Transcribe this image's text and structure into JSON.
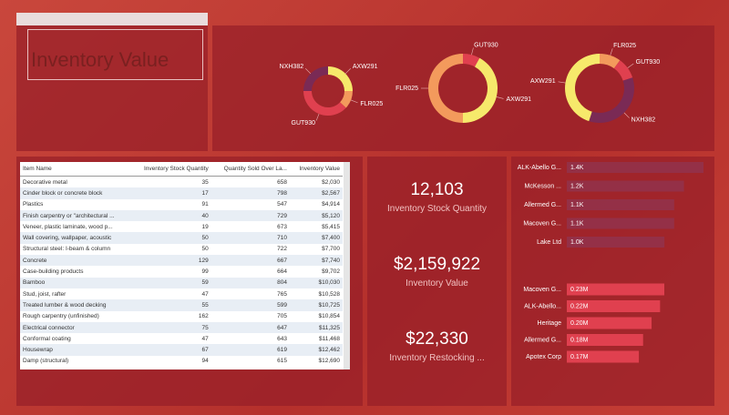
{
  "header": {
    "title": "Inventory Value"
  },
  "donuts": [
    {
      "labels": [
        "AXW291",
        "FLR025",
        "GUT930",
        "NXH382"
      ],
      "values": [
        25,
        12,
        38,
        25
      ],
      "colors": [
        "#f6e96b",
        "#f39a5c",
        "#e0404f",
        "#7a2a55"
      ]
    },
    {
      "labels": [
        "GUT930",
        "AXW291",
        "FLR025"
      ],
      "values": [
        8,
        42,
        50
      ],
      "colors": [
        "#e0404f",
        "#f6e96b",
        "#f39a5c"
      ]
    },
    {
      "labels": [
        "FLR025",
        "GUT930",
        "NXH382",
        "AXW291"
      ],
      "values": [
        10,
        10,
        35,
        45
      ],
      "colors": [
        "#f39a5c",
        "#e0404f",
        "#7a2a55",
        "#f6e96b"
      ]
    }
  ],
  "table": {
    "columns": [
      "Item Name",
      "Inventory Stock Quantity",
      "Quantity Sold Over La...",
      "Inventory Value"
    ],
    "rows": [
      [
        "Decorative metal",
        35,
        658,
        "$2,030"
      ],
      [
        "Cinder block or concrete block",
        17,
        798,
        "$2,567"
      ],
      [
        "Plastics",
        91,
        547,
        "$4,914"
      ],
      [
        "Finish carpentry or \"architectural ...",
        40,
        729,
        "$5,120"
      ],
      [
        "Veneer, plastic laminate, wood p...",
        19,
        673,
        "$5,415"
      ],
      [
        "Wall covering, wallpaper, acoustic",
        50,
        710,
        "$7,400"
      ],
      [
        "Structural steel: I-beam & column",
        50,
        722,
        "$7,700"
      ],
      [
        "Concrete",
        129,
        667,
        "$7,740"
      ],
      [
        "Case-building products",
        99,
        664,
        "$9,702"
      ],
      [
        "Bamboo",
        59,
        804,
        "$10,030"
      ],
      [
        "Stud, joist, rafter",
        47,
        765,
        "$10,528"
      ],
      [
        "Treated lumber & wood decking",
        55,
        599,
        "$10,725"
      ],
      [
        "Rough carpentry (unfinished)",
        162,
        705,
        "$10,854"
      ],
      [
        "Electrical connector",
        75,
        647,
        "$11,325"
      ],
      [
        "Conformal coating",
        47,
        643,
        "$11,468"
      ],
      [
        "Housewrap",
        67,
        619,
        "$12,462"
      ],
      [
        "Damp (structural)",
        94,
        615,
        "$12,690"
      ]
    ]
  },
  "kpis": [
    {
      "value": "12,103",
      "label": "Inventory Stock Quantity"
    },
    {
      "value": "$2,159,922",
      "label": "Inventory Value"
    },
    {
      "value": "$22,330",
      "label": "Inventory Restocking ..."
    }
  ],
  "bars": [
    {
      "categories": [
        "ALK-Abello G...",
        "McKesson ...",
        "Allermed G...",
        "Macoven G...",
        "Lake Ltd"
      ],
      "values": [
        1400,
        1200,
        1100,
        1100,
        1000
      ],
      "value_labels": [
        "1.4K",
        "1.2K",
        "1.1K",
        "1.1K",
        "1.0K"
      ],
      "color": "#8a3a5e"
    },
    {
      "categories": [
        "Macoven G...",
        "ALK-Abello...",
        "Heritage",
        "Allermed G...",
        "Apotex Corp"
      ],
      "values": [
        230000,
        220000,
        200000,
        180000,
        170000
      ],
      "value_labels": [
        "0.23M",
        "0.22M",
        "0.20M",
        "0.18M",
        "0.17M"
      ],
      "color": "#e0404f"
    }
  ]
}
